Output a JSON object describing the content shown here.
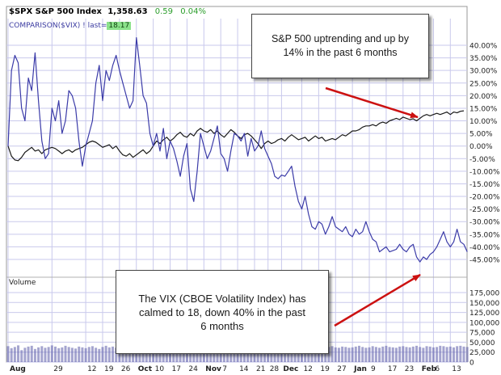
{
  "header": {
    "symbol": "$SPX S&P 500 Index",
    "last": "1,358.63",
    "change": "0.59",
    "change_pct": "0.04%",
    "comparison_label": "COMPARISON($VIX) ! last=",
    "comparison_last": "18.17"
  },
  "volume_label": "Volume",
  "callouts": {
    "top": "S&P 500 uptrending and up by 14% in the past 6 months",
    "bottom": "The VIX (CBOE Volatility Index) has calmed to 18, down 40% in the past 6 months"
  },
  "colors": {
    "spx_line": "#1a1a1a",
    "vix_line": "#3b3ba8",
    "grid": "#c9c9ec",
    "arrow": "#cc1111",
    "change": "#2a9d2a"
  },
  "chart_data": {
    "type": "line",
    "title": "",
    "ylabel": "",
    "ylim": [
      -45,
      40
    ],
    "y_ticks": [
      "40.00%",
      "35.00%",
      "30.00%",
      "25.00%",
      "20.00%",
      "15.00%",
      "10.00%",
      "5.00%",
      "0.00%",
      "-5.00%",
      "-10.00%",
      "-15.00%",
      "-20.00%",
      "-25.00%",
      "-30.00%",
      "-35.00%",
      "-40.00%",
      "-45.00%"
    ],
    "y_tick_values": [
      40,
      35,
      30,
      25,
      20,
      15,
      10,
      5,
      0,
      -5,
      -10,
      -15,
      -20,
      -25,
      -30,
      -35,
      -40,
      -45
    ],
    "x_ticks": [
      "Aug",
      "29",
      "12",
      "19",
      "26",
      "Oct",
      "10",
      "17",
      "24",
      "Nov",
      "7",
      "14",
      "21",
      "28",
      "Dec",
      "12",
      "19",
      "27",
      "Jan",
      "9",
      "17",
      "23",
      "Feb",
      "6",
      "13"
    ],
    "x_tick_bold": [
      true,
      false,
      false,
      false,
      false,
      true,
      false,
      false,
      false,
      true,
      false,
      false,
      false,
      false,
      true,
      false,
      false,
      false,
      true,
      false,
      false,
      false,
      true,
      false,
      false
    ],
    "x_tick_index": [
      0,
      13,
      23,
      28,
      33,
      38,
      43,
      48,
      53,
      58,
      63,
      68,
      73,
      77,
      81,
      87,
      92,
      97,
      102,
      107,
      112,
      117,
      122,
      126,
      131
    ],
    "volume_ticks": [
      "175,000",
      "150,000",
      "125,000",
      "100,000",
      "75,000",
      "50,000",
      "25,000",
      "0"
    ],
    "volume_tick_values": [
      175000,
      150000,
      125000,
      100000,
      75000,
      50000,
      25000,
      0
    ],
    "volume_ylim": [
      0,
      175000
    ],
    "series": [
      {
        "name": "$SPX",
        "values": [
          0.0,
          -4.0,
          -5.5,
          -5.8,
          -4.5,
          -2.5,
          -1.5,
          -0.5,
          -2.0,
          -1.5,
          -3.0,
          -1.5,
          -1.0,
          -0.5,
          -1.0,
          -2.0,
          -3.0,
          -2.0,
          -1.5,
          -2.5,
          -1.5,
          -1.0,
          -0.5,
          0.5,
          1.5,
          2.0,
          1.5,
          0.5,
          -0.5,
          0.0,
          0.5,
          -1.0,
          0.0,
          -2.0,
          -3.5,
          -4.0,
          -3.0,
          -4.5,
          -3.5,
          -2.5,
          -1.5,
          -3.0,
          -2.0,
          0.0,
          2.0,
          1.0,
          2.5,
          3.5,
          2.0,
          3.0,
          4.5,
          5.5,
          4.0,
          3.5,
          5.0,
          4.0,
          6.0,
          7.0,
          6.0,
          5.5,
          6.5,
          5.0,
          6.0,
          4.5,
          3.5,
          5.0,
          6.5,
          5.5,
          4.0,
          3.0,
          4.5,
          5.0,
          4.0,
          2.5,
          1.0,
          -1.0,
          1.0,
          2.0,
          1.0,
          1.5,
          2.5,
          3.0,
          2.0,
          3.5,
          4.5,
          3.5,
          2.5,
          3.0,
          3.5,
          2.0,
          3.0,
          4.0,
          3.0,
          3.5,
          2.0,
          2.5,
          3.0,
          2.5,
          3.5,
          4.5,
          4.0,
          5.0,
          6.0,
          6.0,
          6.5,
          7.5,
          8.0,
          8.0,
          8.5,
          8.0,
          9.0,
          9.5,
          9.0,
          10.0,
          10.5,
          11.0,
          10.5,
          11.5,
          11.0,
          10.5,
          10.8,
          10.0,
          11.0,
          12.0,
          12.5,
          12.0,
          12.5,
          13.0,
          12.5,
          13.0,
          13.5,
          12.5,
          13.5,
          13.2,
          13.8,
          14.0
        ]
      },
      {
        "name": "$VIX",
        "values": [
          0.0,
          30.0,
          36.0,
          33.0,
          15.0,
          10.0,
          27.0,
          22.0,
          37.0,
          18.0,
          2.0,
          -5.0,
          -3.0,
          15.0,
          10.0,
          18.0,
          5.0,
          10.0,
          22.0,
          20.0,
          15.0,
          2.0,
          -8.0,
          0.0,
          5.0,
          10.0,
          25.0,
          32.0,
          18.0,
          30.0,
          26.0,
          32.0,
          36.0,
          30.0,
          25.0,
          20.0,
          15.0,
          18.0,
          43.0,
          32.0,
          20.0,
          17.0,
          5.0,
          0.0,
          5.0,
          -2.0,
          7.0,
          -5.0,
          2.0,
          -1.0,
          -6.0,
          -12.0,
          -4.0,
          1.0,
          -17.0,
          -22.0,
          -10.0,
          5.0,
          0.0,
          -5.0,
          -2.0,
          3.0,
          8.0,
          -3.0,
          -5.0,
          -10.0,
          -2.0,
          5.0,
          4.0,
          2.0,
          5.0,
          -4.0,
          3.0,
          -2.0,
          0.0,
          6.0,
          -1.0,
          -4.0,
          -7.0,
          -12.0,
          -13.0,
          -11.5,
          -12.0,
          -10.0,
          -8.0,
          -16.0,
          -22.0,
          -25.0,
          -20.0,
          -27.0,
          -32.0,
          -33.0,
          -30.0,
          -31.0,
          -35.0,
          -32.0,
          -28.0,
          -32.0,
          -33.0,
          -34.0,
          -32.0,
          -35.0,
          -36.0,
          -33.0,
          -35.0,
          -34.0,
          -30.0,
          -34.0,
          -37.0,
          -38.0,
          -42.0,
          -41.0,
          -40.0,
          -42.0,
          -41.5,
          -41.0,
          -39.0,
          -41.0,
          -42.0,
          -40.0,
          -39.0,
          -44.0,
          -46.0,
          -44.0,
          -45.0,
          -43.0,
          -42.0,
          -40.0,
          -37.0,
          -34.0,
          -38.0,
          -40.0,
          -38.0,
          -33.0,
          -38.0,
          -39.0,
          -42.0
        ]
      }
    ],
    "volume": [
      40000,
      35000,
      38000,
      42000,
      30000,
      36000,
      39000,
      41000,
      33000,
      37000,
      40000,
      36000,
      38000,
      42000,
      39000,
      35000,
      37000,
      41000,
      38000,
      36000,
      34000,
      39000,
      37000,
      35000,
      38000,
      40000,
      36000,
      33000,
      38000,
      41000,
      37000,
      39000,
      36000,
      35000,
      38000,
      42000,
      37000,
      39000,
      41000,
      36000,
      34000,
      38000,
      40000,
      37000,
      35000,
      39000,
      41000,
      36000,
      38000,
      37000,
      33000,
      36000,
      39000,
      40000,
      37000,
      35000,
      38000,
      41000,
      36000,
      34000,
      37000,
      39000,
      40000,
      38000,
      35000,
      37000,
      36000,
      39000,
      41000,
      37000,
      35000,
      38000,
      40000,
      36000,
      30000,
      28000,
      33000,
      35000,
      37000,
      36000,
      39000,
      41000,
      38000,
      36000,
      34000,
      37000,
      39000,
      36000,
      38000,
      35000,
      37000,
      39000,
      41000,
      36000,
      35000,
      38000,
      40000,
      37000,
      36000,
      39000,
      38000,
      36000,
      37000,
      39000,
      41000,
      38000,
      36000,
      37000,
      40000,
      38000,
      36000,
      39000,
      41000,
      38000,
      37000,
      36000,
      39000,
      40000,
      38000,
      37000,
      39000,
      41000,
      38000,
      36000,
      40000,
      39000,
      37000,
      38000,
      41000,
      40000,
      38000,
      39000,
      37000,
      40000,
      41000,
      39000,
      38000
    ],
    "grid": true,
    "legend": "none"
  }
}
